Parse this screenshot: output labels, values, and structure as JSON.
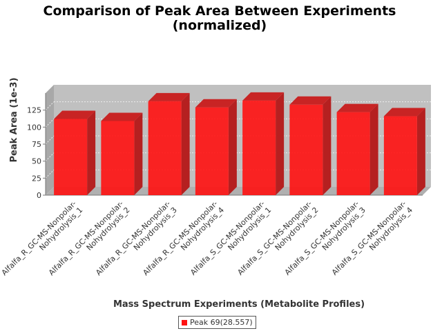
{
  "chart_data": {
    "type": "bar",
    "title": "Comparison of Peak Area Between Experiments",
    "subtitle": "(normalized)",
    "xlabel": "Mass Spectrum Experiments (Metabolite Profiles)",
    "ylabel": "Peak Area (1e-3)",
    "ylim": [
      0,
      150
    ],
    "yticks": [
      0,
      25,
      50,
      75,
      100,
      125
    ],
    "grid": true,
    "legend_position": "bottom",
    "categories": [
      [
        "Alfalfa_R_GC-MS-Nonpolar-",
        "Nohydrolysis_1"
      ],
      [
        "Alfalfa_R_GC-MS-Nonpolar-",
        "Nohydrolysis_2"
      ],
      [
        "Alfalfa_R_GC-MS-Nonpolar-",
        "Nohydrolysis_3"
      ],
      [
        "Alfalfa_R_GC-MS-Nonpolar-",
        "Nohydrolysis_4"
      ],
      [
        "Alfalfa_S_GC-MS-Nonpolar-",
        "Nohydrolysis_1"
      ],
      [
        "Alfalfa_S_GC-MS-Nonpolar-",
        "Nohydrolysis_2"
      ],
      [
        "Alfalfa_S_GC-MS-Nonpolar-",
        "Nohydrolysis_3"
      ],
      [
        "Alfalfa_S_GC-MS-Nonpolar-",
        "Nohydrolysis_4"
      ]
    ],
    "series": [
      {
        "name": "Peak 69(28.557)",
        "color": "#ff1111",
        "values": [
          112,
          109,
          138,
          129,
          139,
          133,
          122,
          116
        ]
      }
    ]
  }
}
